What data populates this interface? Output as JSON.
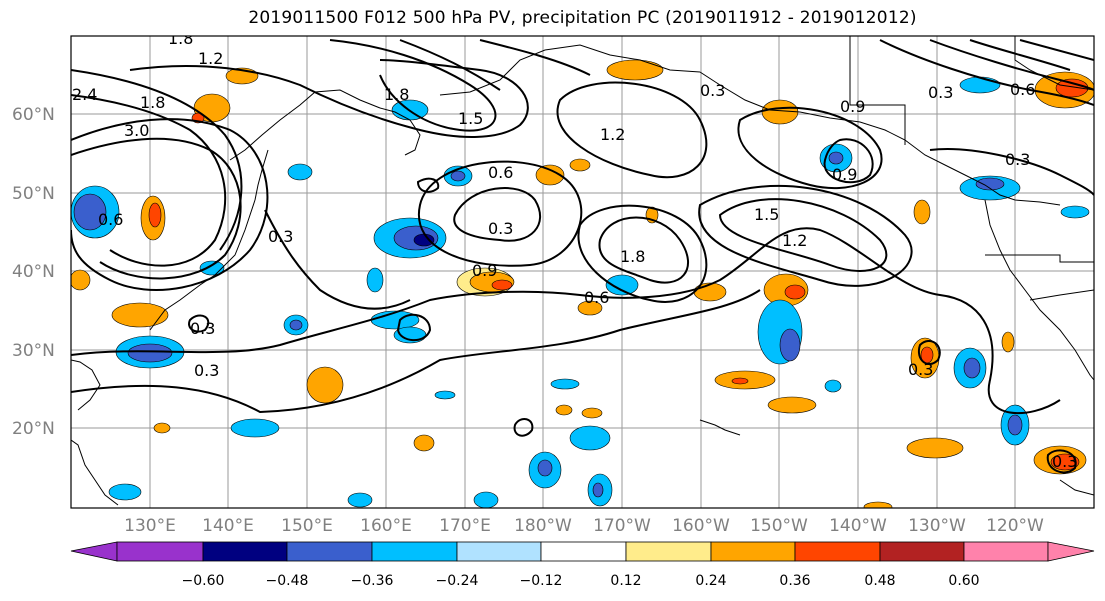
{
  "title": "2019011500 F012 500 hPa PV, precipitation PC (2019011912 - 2019012012)",
  "map": {
    "lat_labels": [
      "60°N",
      "50°N",
      "40°N",
      "30°N",
      "20°N"
    ],
    "lon_labels": [
      "130°E",
      "140°E",
      "150°E",
      "160°E",
      "170°E",
      "180°W",
      "170°W",
      "160°W",
      "150°W",
      "140°W",
      "130°W",
      "120°W"
    ],
    "contour_labels": [
      "1.8",
      "1.2",
      "2.4",
      "1.8",
      "3.0",
      "0.6",
      "0.3",
      "1.8",
      "1.5",
      "0.3",
      "0.6",
      "0.3",
      "0.9",
      "0.6",
      "0.9",
      "1.2",
      "1.8",
      "1.5",
      "1.2",
      "0.9",
      "0.3",
      "0.3",
      "0.6",
      "0.3",
      "0.3",
      "0.3",
      "0.3"
    ]
  },
  "colorbar": {
    "ticks": [
      "−0.60",
      "−0.48",
      "−0.36",
      "−0.24",
      "−0.12",
      "0.12",
      "0.24",
      "0.36",
      "0.48",
      "0.60"
    ],
    "colors": [
      "#9932cc",
      "#000080",
      "#3a5fcd",
      "#00bfff",
      "#b0e2ff",
      "#ffffff",
      "#ffec8b",
      "#ffa500",
      "#ff4500",
      "#b22222",
      "#ff82ab"
    ]
  }
}
